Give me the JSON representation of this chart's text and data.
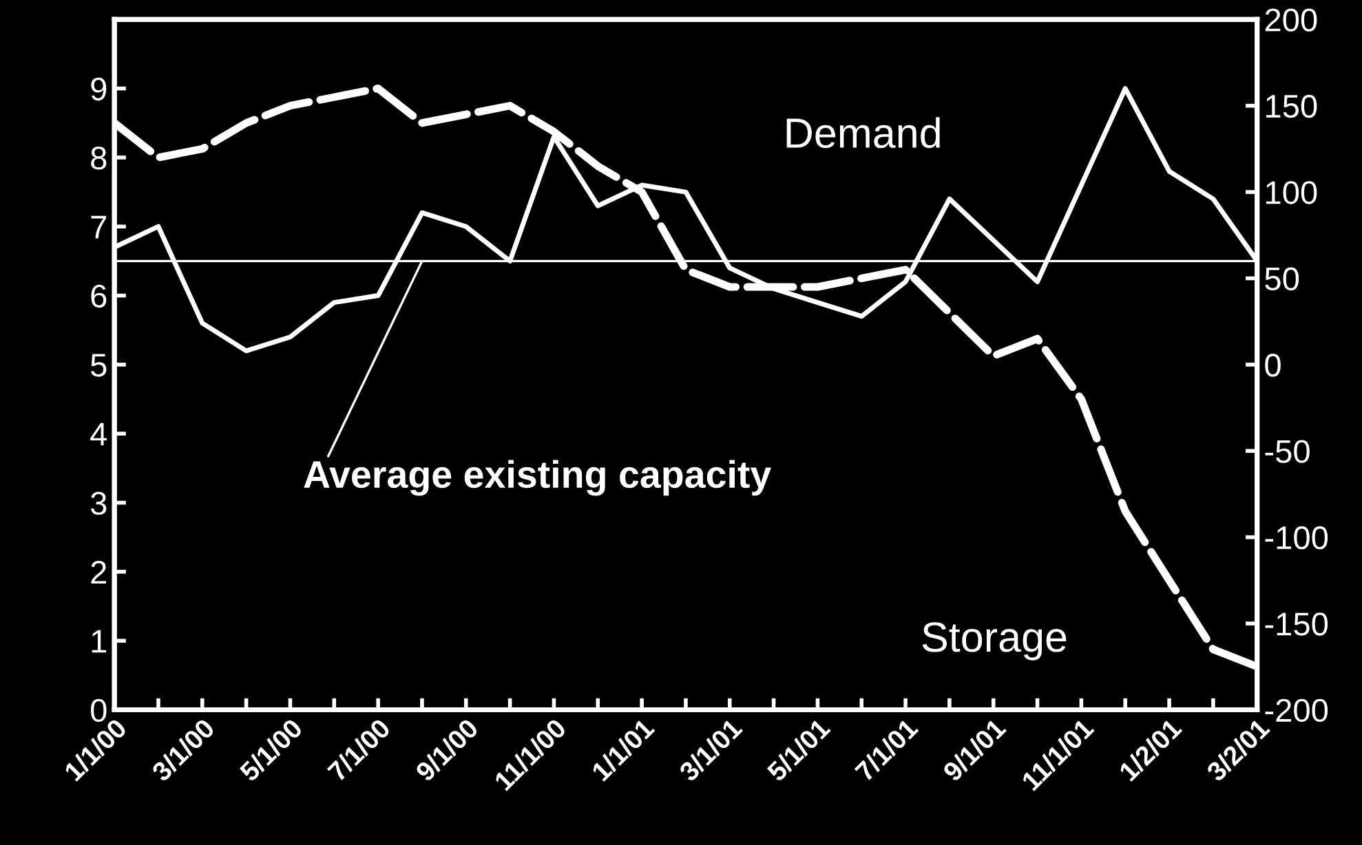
{
  "chart_data": {
    "type": "line",
    "categories": [
      "1/1/00",
      null,
      "3/1/00",
      null,
      "5/1/00",
      null,
      "7/1/00",
      null,
      "9/1/00",
      null,
      "11/1/00",
      null,
      "1/1/01",
      null,
      "3/1/01",
      null,
      "5/1/01",
      null,
      "7/1/01",
      null,
      "9/1/01",
      null,
      "11/1/01",
      null,
      "1/2/01",
      null,
      "3/2/01"
    ],
    "series": [
      {
        "name": "Demand",
        "color": "#ffffff",
        "line_style": "solid",
        "values": [
          6.7,
          7.0,
          5.6,
          5.2,
          5.4,
          5.9,
          6.0,
          7.2,
          7.0,
          6.5,
          8.3,
          7.3,
          7.6,
          7.5,
          6.4,
          6.1,
          5.9,
          5.7,
          6.2,
          7.4,
          6.8,
          6.2,
          7.6,
          9.0,
          7.8,
          7.4,
          6.5
        ]
      },
      {
        "name": "Storage",
        "color": "#ffffff",
        "line_style": "dashed",
        "axis": "y2",
        "values": [
          140,
          120,
          125,
          140,
          150,
          155,
          160,
          140,
          145,
          150,
          135,
          115,
          100,
          55,
          45,
          45,
          45,
          50,
          55,
          30,
          5,
          15,
          -20,
          -85,
          -125,
          -165,
          -175
        ]
      }
    ],
    "ylim": [
      0,
      10
    ],
    "yticks": [
      0,
      1,
      2,
      3,
      4,
      5,
      6,
      7,
      8,
      9
    ],
    "y2lim": [
      -200,
      200
    ],
    "y2ticks": [
      -200,
      -150,
      -100,
      -50,
      0,
      50,
      100,
      150,
      200
    ],
    "ref_lines": [
      {
        "axis": "y",
        "value": 6.5,
        "label": "Average existing capacity",
        "color": "#ffffff"
      }
    ],
    "grid": false,
    "legend": false
  }
}
